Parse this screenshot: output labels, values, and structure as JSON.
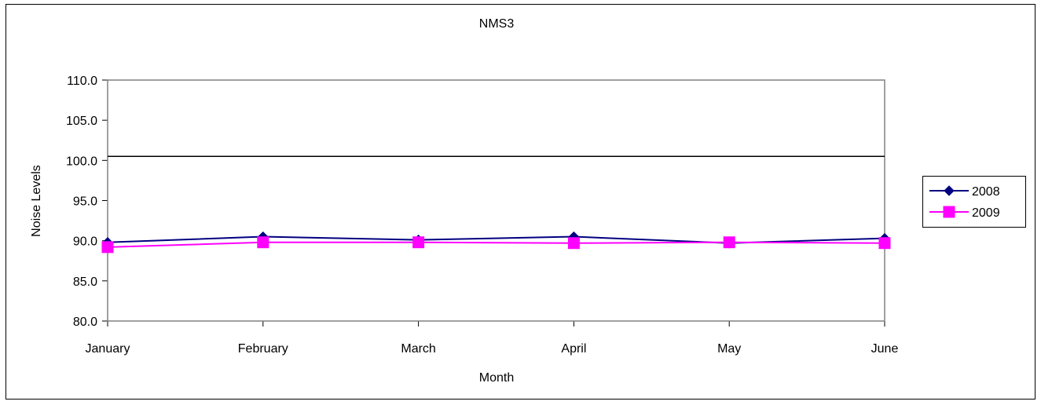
{
  "chart_data": {
    "type": "line",
    "title": "NMS3",
    "xlabel": "Month",
    "ylabel": "Noise Levels",
    "categories": [
      "January",
      "February",
      "March",
      "April",
      "May",
      "June"
    ],
    "ylim": [
      80.0,
      110.0
    ],
    "yticks": [
      "80.0",
      "85.0",
      "90.0",
      "95.0",
      "100.0",
      "105.0",
      "110.0"
    ],
    "grid": false,
    "legend_position": "right",
    "reference_line": {
      "value": 100.5,
      "color": "#000000"
    },
    "series": [
      {
        "name": "2008",
        "values": [
          89.8,
          90.5,
          90.1,
          90.5,
          89.7,
          90.3
        ],
        "color": "#000080",
        "marker": "diamond"
      },
      {
        "name": "2009",
        "values": [
          89.2,
          89.8,
          89.8,
          89.7,
          89.8,
          89.7
        ],
        "color": "#FF00FF",
        "marker": "square"
      }
    ]
  }
}
